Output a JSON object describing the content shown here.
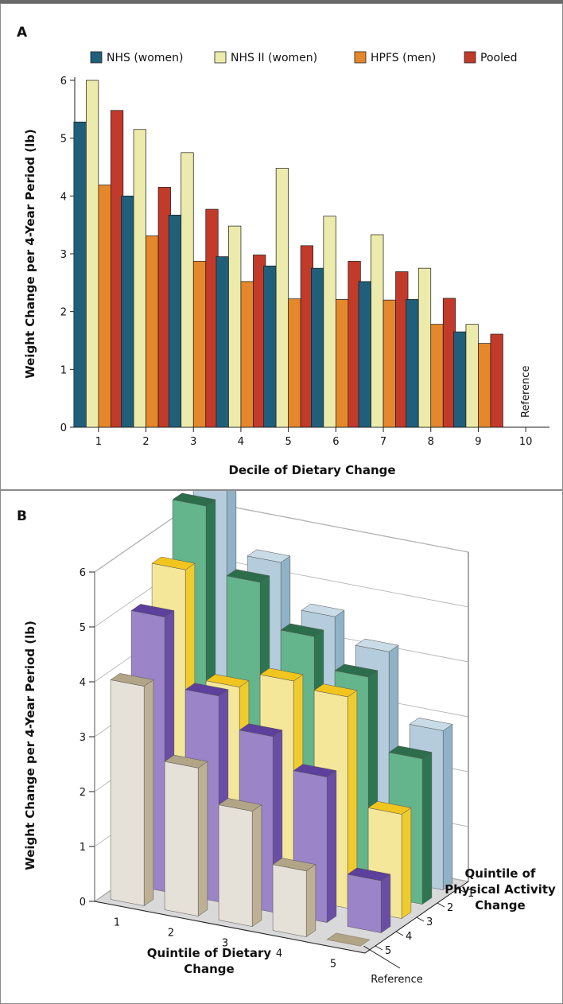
{
  "chart_data": [
    {
      "panel": "A",
      "type": "bar",
      "series": [
        {
          "name": "NHS (women)",
          "color": "#1f5f7a",
          "values": [
            5.28,
            4.0,
            3.67,
            2.95,
            2.79,
            2.75,
            2.52,
            2.21,
            1.65,
            null
          ]
        },
        {
          "name": "NHS II (women)",
          "color": "#ecebab",
          "values": [
            6.0,
            5.15,
            4.75,
            3.48,
            4.48,
            3.65,
            3.33,
            2.75,
            1.78,
            null
          ]
        },
        {
          "name": "HPFS (men)",
          "color": "#e5872b",
          "values": [
            4.19,
            3.31,
            2.87,
            2.52,
            2.22,
            2.21,
            2.2,
            1.78,
            1.45,
            null
          ]
        },
        {
          "name": "Pooled",
          "color": "#c23a2a",
          "values": [
            5.48,
            4.15,
            3.77,
            2.98,
            3.14,
            2.87,
            2.69,
            2.23,
            1.61,
            null
          ]
        }
      ],
      "categories": [
        "1",
        "2",
        "3",
        "4",
        "5",
        "6",
        "7",
        "8",
        "9",
        "10"
      ],
      "ylim": [
        0,
        6
      ],
      "yticks": [
        "0",
        "1",
        "2",
        "3",
        "4",
        "5",
        "6"
      ],
      "xlabel": "Decile of Dietary Change",
      "ylabel": "Weight Change per 4-Year Period (lb)",
      "annotation": "Reference",
      "legend_position": "top"
    },
    {
      "panel": "B",
      "type": "bar3d",
      "zlim": [
        0,
        6
      ],
      "zticks": [
        "0",
        "1",
        "2",
        "3",
        "4",
        "5",
        "6"
      ],
      "zlabel": "Weight Change per 4-Year Period (lb)",
      "xlabel": "Quintile of Dietary Change",
      "ylabel": "Quintile of Physical Activity Change",
      "x_categories": [
        "1",
        "2",
        "3",
        "4",
        "5"
      ],
      "y_categories": [
        "1",
        "2",
        "3",
        "4",
        "5"
      ],
      "annotation": "Reference",
      "series": [
        {
          "name": "5",
          "color_front": "#e6e1d8",
          "color_side": "#bdb094",
          "color_top": "#b2a486",
          "values": [
            4.0,
            2.7,
            2.1,
            1.2,
            0
          ]
        },
        {
          "name": "4",
          "color_front": "#9b84c8",
          "color_side": "#6a4ea6",
          "color_top": "#5d3f9c",
          "values": [
            5.0,
            3.75,
            3.2,
            2.65,
            0.95
          ]
        },
        {
          "name": "3",
          "color_front": "#f4e799",
          "color_side": "#f0cb2e",
          "color_top": "#f2c51e",
          "values": [
            5.6,
            3.65,
            3.95,
            3.85,
            1.9
          ]
        },
        {
          "name": "2",
          "color_front": "#64b48c",
          "color_side": "#2e7650",
          "color_top": "#2c6e4b",
          "values": [
            6.5,
            5.3,
            4.5,
            3.95,
            2.65
          ]
        },
        {
          "name": "1",
          "color_front": "#b4ccdc",
          "color_side": "#8fb2c6",
          "color_top": "#c9dbe6",
          "values": [
            6.9,
            5.4,
            4.6,
            4.15,
            2.9
          ]
        }
      ]
    }
  ],
  "panels": {
    "a_letter": "A",
    "b_letter": "B"
  }
}
